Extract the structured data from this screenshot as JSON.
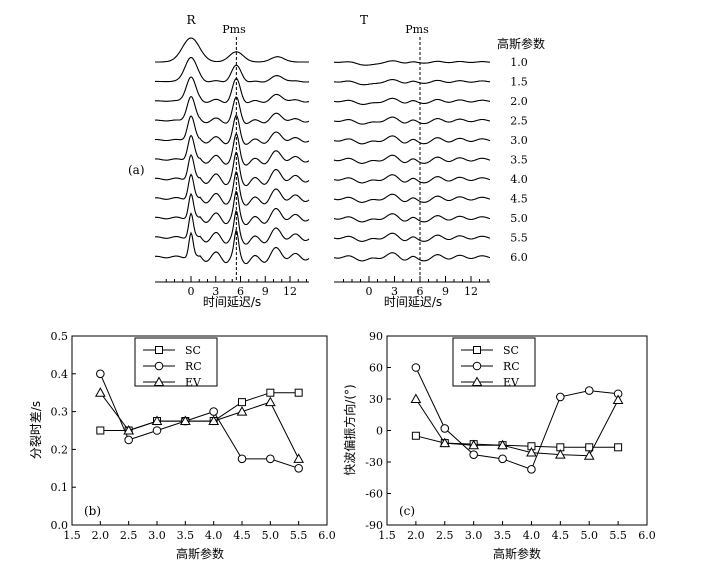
{
  "chart_data": [
    {
      "type": "line",
      "panel_label": "(a)",
      "panels": [
        {
          "title": "R",
          "marker_label": "Pms",
          "marker_time": 5.5
        },
        {
          "title": "T",
          "marker_label": "Pms",
          "marker_time": 6.0
        }
      ],
      "legend_title": "高斯参数",
      "trace_labels": [
        "1.0",
        "1.5",
        "2.0",
        "2.5",
        "3.0",
        "3.5",
        "4.0",
        "4.5",
        "5.0",
        "5.5",
        "6.0"
      ],
      "xlabel": "时间延迟/s",
      "xticks": [
        0,
        3,
        6,
        9,
        12
      ],
      "xlim": [
        -4.5,
        14
      ]
    },
    {
      "type": "line",
      "panel_label": "(b)",
      "x": [
        2.0,
        2.5,
        3.0,
        3.5,
        4.0,
        4.5,
        5.0,
        5.5
      ],
      "series": [
        {
          "name": "SC",
          "marker": "square",
          "values": [
            0.25,
            0.25,
            0.275,
            0.275,
            0.275,
            0.325,
            0.35,
            0.35
          ]
        },
        {
          "name": "RC",
          "marker": "circle",
          "values": [
            0.4,
            0.225,
            0.25,
            0.275,
            0.3,
            0.175,
            0.175,
            0.15
          ]
        },
        {
          "name": "EV",
          "marker": "triangle",
          "values": [
            0.35,
            0.25,
            0.275,
            0.275,
            0.275,
            0.3,
            0.325,
            0.175
          ]
        }
      ],
      "xlabel": "高斯参数",
      "ylabel": "分裂时差/s",
      "xlim": [
        1.5,
        6.0
      ],
      "ylim": [
        0.0,
        0.5
      ],
      "xticks": [
        "1.5",
        "2.0",
        "2.5",
        "3.0",
        "3.5",
        "4.0",
        "4.5",
        "5.0",
        "5.5",
        "6.0"
      ],
      "yticks": [
        "0.0",
        "0.1",
        "0.2",
        "0.3",
        "0.4",
        "0.5"
      ],
      "legend_position": "top-left"
    },
    {
      "type": "line",
      "panel_label": "(c)",
      "x": [
        2.0,
        2.5,
        3.0,
        3.5,
        4.0,
        4.5,
        5.0,
        5.5
      ],
      "series": [
        {
          "name": "SC",
          "marker": "square",
          "values": [
            -5,
            -12,
            -13,
            -14,
            -15,
            -16,
            -16,
            -16
          ]
        },
        {
          "name": "RC",
          "marker": "circle",
          "values": [
            60,
            2,
            -23,
            -27,
            -37,
            32,
            38,
            35
          ]
        },
        {
          "name": "EV",
          "marker": "triangle",
          "values": [
            30,
            -12,
            -14,
            -14,
            -21,
            -23,
            -24,
            29
          ]
        }
      ],
      "xlabel": "高斯参数",
      "ylabel": "快波偏振方向/(°)",
      "xlim": [
        1.5,
        6.0
      ],
      "ylim": [
        -90,
        90
      ],
      "xticks": [
        "1.5",
        "2.0",
        "2.5",
        "3.0",
        "3.5",
        "4.0",
        "4.5",
        "5.0",
        "5.5",
        "6.0"
      ],
      "yticks": [
        "-90",
        "-60",
        "-30",
        "0",
        "30",
        "60",
        "90"
      ],
      "legend_position": "top-left"
    }
  ]
}
